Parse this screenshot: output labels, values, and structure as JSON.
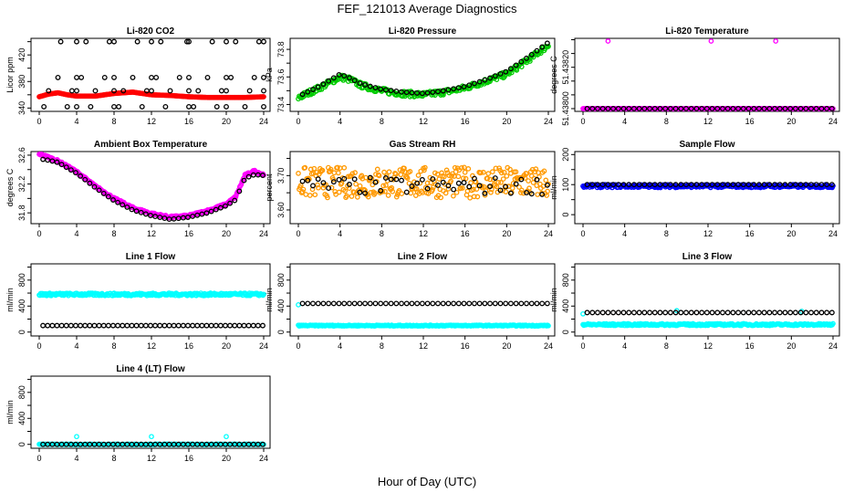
{
  "chart_data": {
    "title": "FEF_121013  Average Diagnostics",
    "xlabel": "Hour of Day (UTC)",
    "xticks": [
      0,
      4,
      8,
      12,
      16,
      20,
      24
    ],
    "xlim": [
      0,
      24
    ],
    "panels": [
      {
        "type": "scatter",
        "title": "Li-820 CO2",
        "ylabel": "Licor ppm",
        "ylim": [
          335,
          445
        ],
        "yticks": [
          340,
          360,
          380,
          400,
          420,
          440
        ],
        "ylabels": [
          "340",
          "",
          "380",
          "",
          "420",
          ""
        ],
        "series": [
          {
            "name": "red",
            "color": "#ff0000",
            "hours": [
              0,
              1,
              2,
              3,
              4,
              6,
              8,
              10,
              12,
              14,
              16,
              18,
              20,
              22,
              24
            ],
            "values": [
              357,
              361,
              363,
              360,
              358,
              358,
              362,
              364,
              360,
              359,
              357,
              356,
              356,
              356,
              357
            ],
            "dense": true
          },
          {
            "name": "black",
            "color": "#000000",
            "points": [
              [
                0.5,
                342
              ],
              [
                1,
                366
              ],
              [
                2,
                386
              ],
              [
                2.3,
                440
              ],
              [
                3,
                342
              ],
              [
                3.5,
                366
              ],
              [
                4,
                440
              ],
              [
                4,
                386
              ],
              [
                4,
                366
              ],
              [
                4,
                342
              ],
              [
                4.5,
                386
              ],
              [
                5,
                440
              ],
              [
                5.5,
                342
              ],
              [
                6,
                366
              ],
              [
                7,
                386
              ],
              [
                7.5,
                440
              ],
              [
                8,
                440
              ],
              [
                8,
                386
              ],
              [
                8,
                366
              ],
              [
                8,
                342
              ],
              [
                8.5,
                342
              ],
              [
                9,
                366
              ],
              [
                10,
                386
              ],
              [
                10.5,
                440
              ],
              [
                11,
                342
              ],
              [
                11.5,
                366
              ],
              [
                12,
                440
              ],
              [
                12,
                386
              ],
              [
                12,
                366
              ],
              [
                12.5,
                386
              ],
              [
                13,
                440
              ],
              [
                13.5,
                342
              ],
              [
                14,
                366
              ],
              [
                15,
                386
              ],
              [
                15.8,
                440
              ],
              [
                16,
                440
              ],
              [
                16,
                386
              ],
              [
                16,
                366
              ],
              [
                16,
                342
              ],
              [
                16.5,
                342
              ],
              [
                17,
                366
              ],
              [
                18,
                386
              ],
              [
                18.5,
                440
              ],
              [
                19,
                342
              ],
              [
                19.5,
                366
              ],
              [
                20,
                440
              ],
              [
                20,
                386
              ],
              [
                20,
                366
              ],
              [
                20,
                342
              ],
              [
                20.5,
                386
              ],
              [
                21,
                440
              ],
              [
                22,
                342
              ],
              [
                22.5,
                366
              ],
              [
                23,
                386
              ],
              [
                23.5,
                440
              ],
              [
                24,
                440
              ],
              [
                24,
                386
              ],
              [
                24,
                366
              ],
              [
                24,
                342
              ]
            ]
          }
        ]
      },
      {
        "type": "scatter",
        "title": "Li-820 Pressure",
        "ylabel": "kPa",
        "ylim": [
          73.35,
          73.88
        ],
        "yticks": [
          73.4,
          73.5,
          73.6,
          73.7,
          73.8
        ],
        "ylabels": [
          "73.4",
          "",
          "73.6",
          "",
          "73.8"
        ],
        "series": [
          {
            "name": "green",
            "color": "#00cc00",
            "hours": [
              0,
              2,
              4,
              5,
              6,
              8,
              10,
              12,
              14,
              16,
              18,
              20,
              22,
              24
            ],
            "values": [
              73.45,
              73.52,
              73.6,
              73.58,
              73.54,
              73.5,
              73.48,
              73.47,
              73.49,
              73.52,
              73.57,
              73.62,
              73.72,
              73.83
            ],
            "dense": true,
            "spread": 0.04
          },
          {
            "name": "black",
            "color": "#000000",
            "hours": [
              0,
              2,
              4,
              5,
              6,
              8,
              10,
              12,
              14,
              16,
              18,
              20,
              22,
              24
            ],
            "values": [
              73.46,
              73.53,
              73.62,
              73.59,
              73.55,
              73.51,
              73.49,
              73.48,
              73.5,
              73.53,
              73.58,
              73.64,
              73.74,
              73.85
            ]
          }
        ]
      },
      {
        "type": "scatter",
        "title": "Li-820 Temperature",
        "ylabel": "degrees C",
        "ylim": [
          51.43778,
          51.43831
        ],
        "yticks": [
          51.4378,
          51.4379,
          51.438,
          51.4381,
          51.4382,
          51.4383
        ],
        "ylabels": [
          "51.43800",
          "",
          "",
          "51.43820",
          "",
          ""
        ],
        "series": [
          {
            "name": "magenta",
            "color": "#ff00ff",
            "hours": [
              0,
              24
            ],
            "values": [
              51.4378,
              51.4378
            ],
            "dense": true,
            "outliers": [
              [
                2.4,
                51.4383
              ],
              [
                12.3,
                51.4383
              ],
              [
                18.5,
                51.4383
              ]
            ]
          },
          {
            "name": "black",
            "color": "#000000",
            "hours": [
              0,
              24
            ],
            "values": [
              51.4378,
              51.4378
            ]
          }
        ]
      },
      {
        "type": "scatter",
        "title": "Ambient Box Temperature",
        "ylabel": "degrees C",
        "ylim": [
          31.65,
          32.65
        ],
        "yticks": [
          31.8,
          32.0,
          32.2,
          32.4,
          32.6
        ],
        "ylabels": [
          "31.8",
          "",
          "32.2",
          "",
          "32.6"
        ],
        "series": [
          {
            "name": "magenta",
            "color": "#ff00ff",
            "hours": [
              0,
              1,
              2,
              4,
              6,
              8,
              10,
              12,
              14,
              16,
              18,
              20,
              21,
              22,
              23,
              24
            ],
            "values": [
              32.62,
              32.57,
              32.52,
              32.37,
              32.17,
              32.0,
              31.87,
              31.79,
              31.74,
              31.76,
              31.83,
              31.92,
              32.02,
              32.32,
              32.38,
              32.33
            ],
            "dense": true,
            "spread": 0.03
          },
          {
            "name": "black",
            "color": "#000000",
            "hours": [
              0,
              1,
              2,
              4,
              6,
              8,
              10,
              12,
              14,
              16,
              18,
              20,
              21,
              22,
              23,
              24
            ],
            "values": [
              32.55,
              32.53,
              32.5,
              32.35,
              32.15,
              31.97,
              31.84,
              31.76,
              31.71,
              31.74,
              31.8,
              31.9,
              31.98,
              32.28,
              32.33,
              32.32
            ]
          }
        ]
      },
      {
        "type": "scatter",
        "title": "Gas Stream RH",
        "ylabel": "percent",
        "ylim": [
          3.56,
          3.77
        ],
        "yticks": [
          3.6,
          3.65,
          3.7,
          3.75
        ],
        "ylabels": [
          "3.60",
          "",
          "3.70",
          ""
        ],
        "series": [
          {
            "name": "orange",
            "color": "#ff9900",
            "hours": [
              0,
              24
            ],
            "values": [
              3.68,
              3.68
            ],
            "dense": true,
            "spread": 0.09
          },
          {
            "name": "black",
            "color": "#000000",
            "hours": [
              0,
              24
            ],
            "values": [
              3.67,
              3.67
            ],
            "spread": 0.05
          }
        ]
      },
      {
        "type": "scatter",
        "title": "Sample Flow",
        "ylabel": "ml/min",
        "ylim": [
          -30,
          210
        ],
        "yticks": [
          0,
          50,
          100,
          150,
          200
        ],
        "ylabels": [
          "0",
          "",
          "100",
          "",
          "200"
        ],
        "series": [
          {
            "name": "blue",
            "color": "#0000ff",
            "hours": [
              0,
              24
            ],
            "values": [
              95,
              95
            ],
            "dense": true,
            "spread": 10
          },
          {
            "name": "black",
            "color": "#000000",
            "hours": [
              0,
              24
            ],
            "values": [
              100,
              100
            ]
          }
        ]
      },
      {
        "type": "scatter",
        "title": "Line 1 Flow",
        "ylabel": "ml/min",
        "ylim": [
          -60,
          1050
        ],
        "yticks": [
          0,
          200,
          400,
          600,
          800,
          1000
        ],
        "ylabels": [
          "0",
          "",
          "400",
          "",
          "800",
          ""
        ],
        "series": [
          {
            "name": "cyan",
            "color": "#00ffff",
            "hours": [
              0,
              24
            ],
            "values": [
              580,
              580
            ],
            "dense": true,
            "spread": 40
          },
          {
            "name": "black",
            "color": "#000000",
            "hours": [
              0,
              24
            ],
            "values": [
              100,
              100
            ]
          }
        ]
      },
      {
        "type": "scatter",
        "title": "Line 2 Flow",
        "ylabel": "ml/min",
        "ylim": [
          -60,
          1050
        ],
        "yticks": [
          0,
          200,
          400,
          600,
          800,
          1000
        ],
        "ylabels": [
          "0",
          "",
          "400",
          "",
          "800",
          ""
        ],
        "series": [
          {
            "name": "cyan",
            "color": "#00ffff",
            "hours": [
              0,
              24
            ],
            "values": [
              100,
              100
            ],
            "dense": true,
            "spread": 15,
            "outliers": [
              [
                0,
                420
              ]
            ]
          },
          {
            "name": "black",
            "color": "#000000",
            "hours": [
              0,
              24
            ],
            "values": [
              440,
              440
            ]
          }
        ]
      },
      {
        "type": "scatter",
        "title": "Line 3 Flow",
        "ylabel": "ml/min",
        "ylim": [
          -60,
          1050
        ],
        "yticks": [
          0,
          200,
          400,
          600,
          800,
          1000
        ],
        "ylabels": [
          "0",
          "",
          "400",
          "",
          "800",
          ""
        ],
        "series": [
          {
            "name": "cyan",
            "color": "#00ffff",
            "hours": [
              0,
              24
            ],
            "values": [
              115,
              115
            ],
            "dense": true,
            "spread": 30,
            "outliers": [
              [
                0,
                280
              ],
              [
                9,
                330
              ],
              [
                21,
                320
              ]
            ]
          },
          {
            "name": "black",
            "color": "#000000",
            "hours": [
              0,
              24
            ],
            "values": [
              300,
              300
            ]
          }
        ]
      },
      {
        "type": "scatter",
        "title": "Line 4 (LT) Flow",
        "ylabel": "ml/min",
        "ylim": [
          -60,
          1050
        ],
        "yticks": [
          0,
          200,
          400,
          600,
          800,
          1000
        ],
        "ylabels": [
          "0",
          "",
          "400",
          "",
          "800",
          ""
        ],
        "series": [
          {
            "name": "cyan",
            "color": "#00ffff",
            "hours": [
              0,
              24
            ],
            "values": [
              0,
              0
            ],
            "dense": true,
            "spread": 8,
            "outliers": [
              [
                4,
                120
              ],
              [
                12,
                120
              ],
              [
                20,
                120
              ]
            ]
          },
          {
            "name": "black",
            "color": "#000000",
            "hours": [
              0,
              24
            ],
            "values": [
              0,
              0
            ]
          }
        ]
      }
    ]
  }
}
